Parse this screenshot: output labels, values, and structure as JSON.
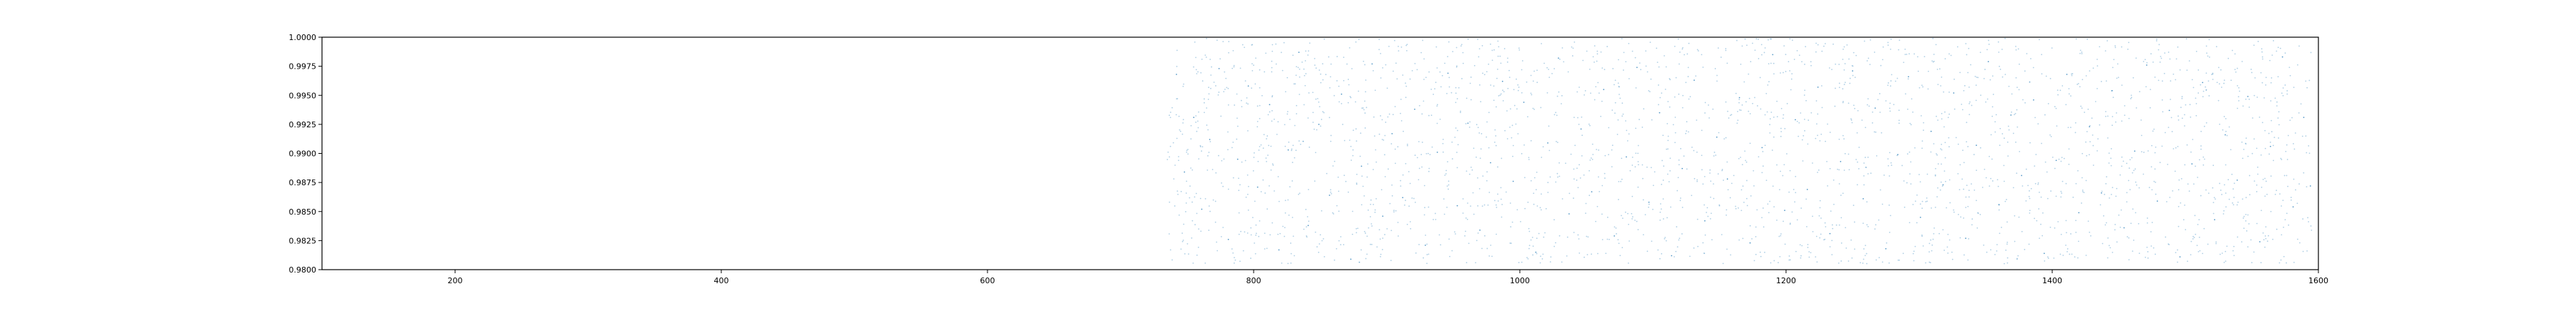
{
  "chart_data": {
    "type": "scatter",
    "title": "",
    "xlabel": "",
    "ylabel": "",
    "xlim": [
      100,
      1600
    ],
    "ylim": [
      0.98,
      1.0
    ],
    "grid": false,
    "x_ticks": [
      "200",
      "400",
      "600",
      "800",
      "1000",
      "1200",
      "1400",
      "1600"
    ],
    "y_ticks": [
      "0.9800",
      "0.9825",
      "0.9850",
      "0.9875",
      "0.9900",
      "0.9925",
      "0.9950",
      "0.9975",
      "1.0000"
    ],
    "series": [
      {
        "marker_color": "#1f77b4",
        "x_range": [
          735,
          1595
        ],
        "y_range": [
          0.9805,
          0.9999
        ],
        "points": [
          [
            742,
            0.9968
          ],
          [
            748,
            0.9884
          ],
          [
            755,
            0.9931
          ],
          [
            761,
            0.9852
          ],
          [
            767,
            0.9912
          ],
          [
            774,
            0.9973
          ],
          [
            781,
            0.9826
          ],
          [
            788,
            0.9895
          ],
          [
            796,
            0.9958
          ],
          [
            803,
            0.9871
          ],
          [
            812,
            0.9942
          ],
          [
            819,
            0.9817
          ],
          [
            826,
            0.9903
          ],
          [
            834,
            0.9987
          ],
          [
            841,
            0.9838
          ],
          [
            849,
            0.9925
          ],
          [
            857,
            0.9864
          ],
          [
            866,
            0.9951
          ],
          [
            873,
            0.9809
          ],
          [
            881,
            0.9889
          ],
          [
            889,
            0.9977
          ],
          [
            897,
            0.9846
          ],
          [
            904,
            0.9917
          ],
          [
            912,
            0.9862
          ],
          [
            921,
            0.9938
          ],
          [
            929,
            0.9821
          ],
          [
            938,
            0.9901
          ],
          [
            946,
            0.9969
          ],
          [
            953,
            0.9855
          ],
          [
            961,
            0.9926
          ],
          [
            970,
            0.9834
          ],
          [
            978,
            0.9892
          ],
          [
            987,
            0.9962
          ],
          [
            995,
            0.9876
          ],
          [
            1003,
            0.9944
          ],
          [
            1012,
            0.9815
          ],
          [
            1021,
            0.9909
          ],
          [
            1029,
            0.9982
          ],
          [
            1037,
            0.9848
          ],
          [
            1046,
            0.9921
          ],
          [
            1054,
            0.9867
          ],
          [
            1063,
            0.9955
          ],
          [
            1071,
            0.9829
          ],
          [
            1080,
            0.9897
          ],
          [
            1088,
            0.9974
          ],
          [
            1097,
            0.9858
          ],
          [
            1105,
            0.9935
          ],
          [
            1114,
            0.9812
          ],
          [
            1122,
            0.9887
          ],
          [
            1131,
            0.9963
          ],
          [
            1139,
            0.9842
          ],
          [
            1148,
            0.9914
          ],
          [
            1156,
            0.9878
          ],
          [
            1165,
            0.9948
          ],
          [
            1173,
            0.9823
          ],
          [
            1182,
            0.9905
          ],
          [
            1190,
            0.9985
          ],
          [
            1199,
            0.9851
          ],
          [
            1207,
            0.9929
          ],
          [
            1216,
            0.9869
          ],
          [
            1224,
            0.9957
          ],
          [
            1233,
            0.9831
          ],
          [
            1241,
            0.9893
          ],
          [
            1250,
            0.9971
          ],
          [
            1258,
            0.9861
          ],
          [
            1267,
            0.9939
          ],
          [
            1275,
            0.9818
          ],
          [
            1284,
            0.9899
          ],
          [
            1292,
            0.9966
          ],
          [
            1301,
            0.9845
          ],
          [
            1309,
            0.9919
          ],
          [
            1318,
            0.9873
          ],
          [
            1326,
            0.9952
          ],
          [
            1335,
            0.9827
          ],
          [
            1343,
            0.9907
          ],
          [
            1352,
            0.9979
          ],
          [
            1360,
            0.9856
          ],
          [
            1369,
            0.9933
          ],
          [
            1377,
            0.9881
          ],
          [
            1386,
            0.9946
          ],
          [
            1394,
            0.9814
          ],
          [
            1403,
            0.9894
          ],
          [
            1411,
            0.9968
          ],
          [
            1420,
            0.9849
          ],
          [
            1428,
            0.9923
          ],
          [
            1437,
            0.9866
          ],
          [
            1445,
            0.9954
          ],
          [
            1454,
            0.9836
          ],
          [
            1462,
            0.9902
          ],
          [
            1471,
            0.9976
          ],
          [
            1479,
            0.9859
          ],
          [
            1488,
            0.9937
          ],
          [
            1496,
            0.9811
          ],
          [
            1505,
            0.9891
          ],
          [
            1513,
            0.9961
          ],
          [
            1522,
            0.9843
          ],
          [
            1530,
            0.9916
          ],
          [
            1539,
            0.9877
          ],
          [
            1547,
            0.9949
          ],
          [
            1556,
            0.9824
          ],
          [
            1564,
            0.9906
          ],
          [
            1573,
            0.9983
          ],
          [
            1581,
            0.9854
          ],
          [
            1589,
            0.9931
          ],
          [
            1594,
            0.9872
          ]
        ]
      }
    ]
  }
}
